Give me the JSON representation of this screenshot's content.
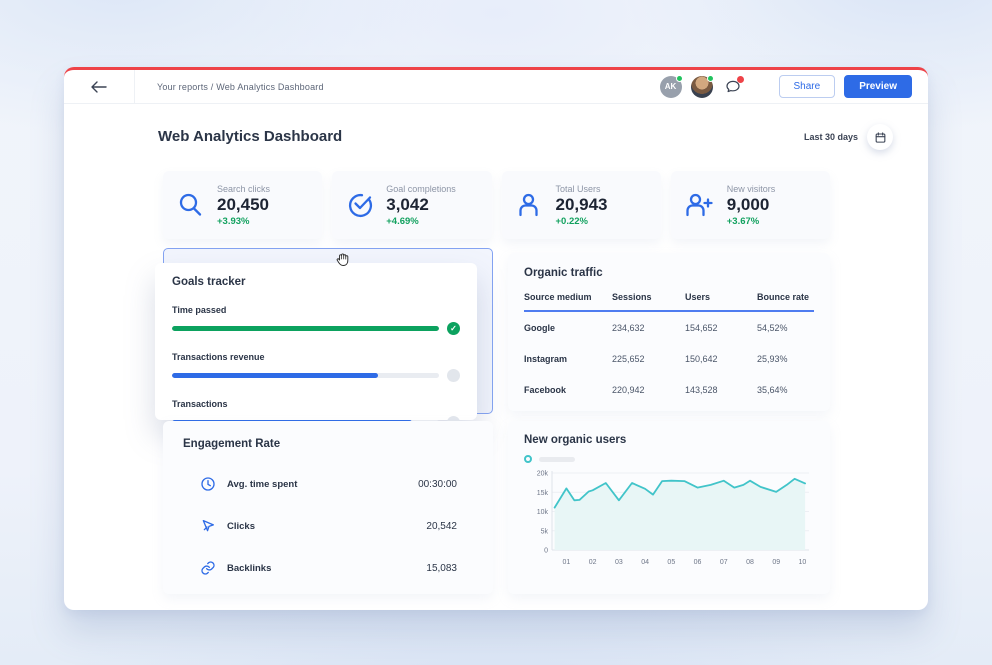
{
  "topbar": {
    "breadcrumb": "Your reports / Web Analytics Dashboard",
    "avatars": [
      {
        "initials": "AK",
        "status_color": "#21c25e"
      },
      {
        "type": "photo",
        "status_color": "#21c25e"
      }
    ],
    "chat_badge_color": "#ee4348",
    "share_label": "Share",
    "preview_label": "Preview"
  },
  "header": {
    "title": "Web Analytics Dashboard",
    "date_range": "Last 30 days"
  },
  "colors": {
    "accent_blue": "#2e6be6",
    "success_green": "#12a15f",
    "alert_red": "#ee4348",
    "chart_teal": "#41c4c9"
  },
  "stats": [
    {
      "icon": "search",
      "label": "Search clicks",
      "value": "20,450",
      "delta": "+3.93%"
    },
    {
      "icon": "check-circle",
      "label": "Goal completions",
      "value": "3,042",
      "delta": "+4.69%"
    },
    {
      "icon": "user",
      "label": "Total Users",
      "value": "20,943",
      "delta": "+0.22%"
    },
    {
      "icon": "user-plus",
      "label": "New visitors",
      "value": "9,000",
      "delta": "+3.67%"
    }
  ],
  "goals": {
    "title": "Goals tracker",
    "items": [
      {
        "label": "Time passed",
        "progress": 100,
        "color": "#0ca25f",
        "complete": true
      },
      {
        "label": "Transactions revenue",
        "progress": 77,
        "color": "#2e6be6",
        "complete": false
      },
      {
        "label": "Transactions",
        "progress": 90,
        "color": "#2e6be6",
        "complete": false
      }
    ]
  },
  "organic_traffic": {
    "title": "Organic traffic",
    "columns": [
      "Source medium",
      "Sessions",
      "Users",
      "Bounce rate"
    ],
    "rows": [
      [
        "Google",
        "234,632",
        "154,652",
        "54,52%"
      ],
      [
        "Instagram",
        "225,652",
        "150,642",
        "25,93%"
      ],
      [
        "Facebook",
        "220,942",
        "143,528",
        "35,64%"
      ]
    ]
  },
  "engagement": {
    "title": "Engagement Rate",
    "items": [
      {
        "icon": "clock",
        "label": "Avg. time spent",
        "value": "00:30:00"
      },
      {
        "icon": "cursor",
        "label": "Clicks",
        "value": "20,542"
      },
      {
        "icon": "link",
        "label": "Backlinks",
        "value": "15,083"
      }
    ]
  },
  "chart_data": {
    "type": "area",
    "title": "New organic users",
    "x": [
      0.55,
      1,
      1.3,
      1.5,
      1.85,
      2,
      2.5,
      3,
      3.5,
      4,
      4.3,
      4.65,
      5,
      5.5,
      6,
      6.5,
      7,
      7.4,
      7.75,
      8,
      8.4,
      9,
      9.4,
      9.7,
      10.1
    ],
    "values_k": [
      11,
      16,
      12.9,
      13,
      15.2,
      15.5,
      17.4,
      12.9,
      17.4,
      15.9,
      14.4,
      17.9,
      18,
      17.9,
      16.2,
      16.9,
      18,
      16.2,
      16.9,
      18,
      16.4,
      15.1,
      16.9,
      18.5,
      17.3
    ],
    "x_ticks": [
      "01",
      "02",
      "03",
      "04",
      "05",
      "06",
      "07",
      "08",
      "09",
      "10"
    ],
    "y_ticks": [
      {
        "label": "0",
        "value_k": 0
      },
      {
        "label": "5k",
        "value_k": 5
      },
      {
        "label": "10k",
        "value_k": 10
      },
      {
        "label": "15k",
        "value_k": 15
      },
      {
        "label": "20k",
        "value_k": 20
      }
    ],
    "ylim_k": [
      0,
      20
    ],
    "grid": true,
    "legend_style": "skeleton",
    "line_color": "#41c4c9",
    "fill_color": "#e8f6f6"
  }
}
